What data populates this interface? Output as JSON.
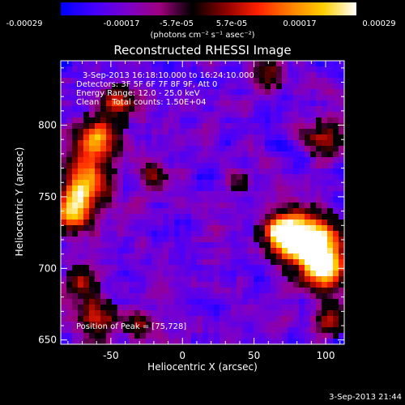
{
  "colorbar": {
    "ticks": [
      "-0.00029",
      "-0.00017",
      "-5.7e-05",
      "5.7e-05",
      "0.00017",
      "0.00029"
    ],
    "unit_label": "(photons cm⁻² s⁻¹ asec⁻²)",
    "colors": [
      "#0000ff",
      "#4400ff",
      "#7a00cc",
      "#a00080",
      "#000000",
      "#8b0000",
      "#ff2000",
      "#ff8000",
      "#ffd000",
      "#ffffff"
    ]
  },
  "chart_data": {
    "type": "heatmap",
    "title": "Reconstructed RHESSI Image",
    "xlabel": "Heliocentric X (arcsec)",
    "ylabel": "Heliocentric Y (arcsec)",
    "xlim": [
      -85,
      113
    ],
    "ylim": [
      647,
      845
    ],
    "xticks": [
      -50,
      0,
      50,
      100
    ],
    "yticks": [
      650,
      700,
      750,
      800
    ],
    "value_range": [
      -0.00029,
      0.00029
    ],
    "peak_position": [
      75,
      728
    ],
    "bright_sources": [
      {
        "x": 88,
        "y": 718,
        "level": 1.0,
        "spread": 14
      },
      {
        "x": 70,
        "y": 725,
        "level": 0.85,
        "spread": 9
      },
      {
        "x": 100,
        "y": 700,
        "level": 0.8,
        "spread": 10
      },
      {
        "x": -68,
        "y": 760,
        "level": 0.75,
        "spread": 12
      },
      {
        "x": -60,
        "y": 790,
        "level": 0.7,
        "spread": 10
      },
      {
        "x": -78,
        "y": 740,
        "level": 0.7,
        "spread": 10
      },
      {
        "x": -45,
        "y": 815,
        "level": 0.55,
        "spread": 8
      },
      {
        "x": -20,
        "y": 765,
        "level": 0.45,
        "spread": 6
      },
      {
        "x": -70,
        "y": 690,
        "level": 0.45,
        "spread": 8
      },
      {
        "x": -60,
        "y": 665,
        "level": 0.55,
        "spread": 9
      },
      {
        "x": -30,
        "y": 660,
        "level": 0.4,
        "spread": 7
      },
      {
        "x": 100,
        "y": 790,
        "level": 0.45,
        "spread": 9
      },
      {
        "x": 105,
        "y": 665,
        "level": 0.45,
        "spread": 8
      },
      {
        "x": 60,
        "y": 835,
        "level": 0.35,
        "spread": 8
      },
      {
        "x": 40,
        "y": 760,
        "level": 0.25,
        "spread": 6
      }
    ]
  },
  "info": {
    "time_range": "3-Sep-2013 16:18:10.000 to 16:24:10.000",
    "detectors": "Detectors: 3F 5F 6F 7F 8F 9F, Att 0",
    "energy_range": "Energy Range: 12.0 - 25.0 keV",
    "method": "Clean     Total counts: 1.50E+04",
    "peak": "Position of Peak = [75,728]"
  },
  "timestamp": "3-Sep-2013 21:44"
}
